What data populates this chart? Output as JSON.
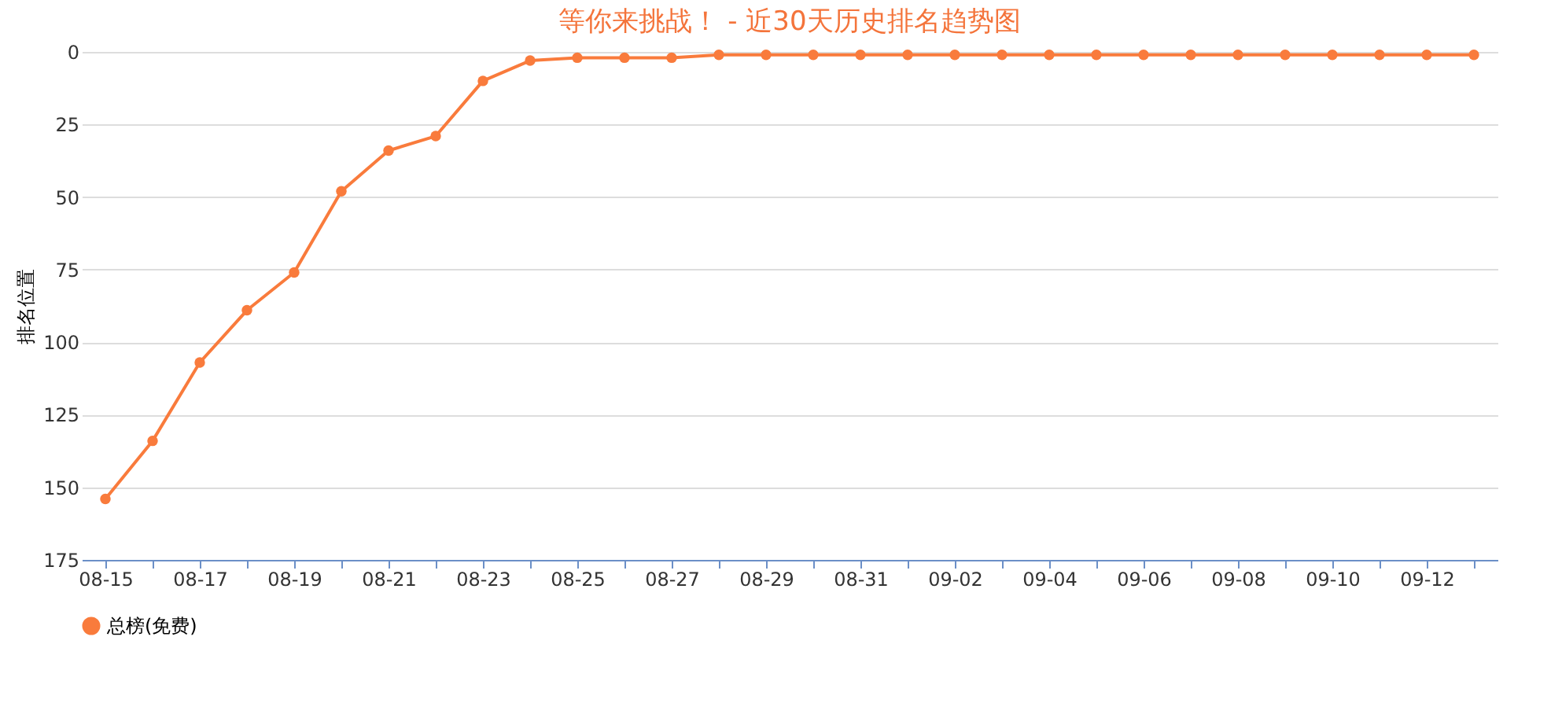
{
  "chart_data": {
    "type": "line",
    "title": "等你来挑战！ - 近30天历史排名趋势图",
    "ylabel": "排名位置",
    "categories": [
      "08-15",
      null,
      "08-17",
      null,
      "08-19",
      null,
      "08-21",
      null,
      "08-23",
      null,
      "08-25",
      null,
      "08-27",
      null,
      "08-29",
      null,
      "08-31",
      null,
      "09-02",
      null,
      "09-04",
      null,
      "09-06",
      null,
      "09-08",
      null,
      "09-10",
      null,
      "09-12",
      null
    ],
    "series": [
      {
        "name": "总榜(免费)",
        "color": "#f97b3c",
        "values": [
          154,
          134,
          107,
          89,
          76,
          48,
          34,
          29,
          10,
          3,
          2,
          2,
          2,
          1,
          1,
          1,
          1,
          1,
          1,
          1,
          1,
          1,
          1,
          1,
          1,
          1,
          1,
          1,
          1,
          1
        ]
      }
    ],
    "ylim": [
      175,
      0
    ],
    "yticks": [
      0,
      25,
      50,
      75,
      100,
      125,
      150,
      175
    ],
    "grid": "y",
    "legend": "bottom",
    "marker": "circle",
    "line_style": "solid"
  }
}
